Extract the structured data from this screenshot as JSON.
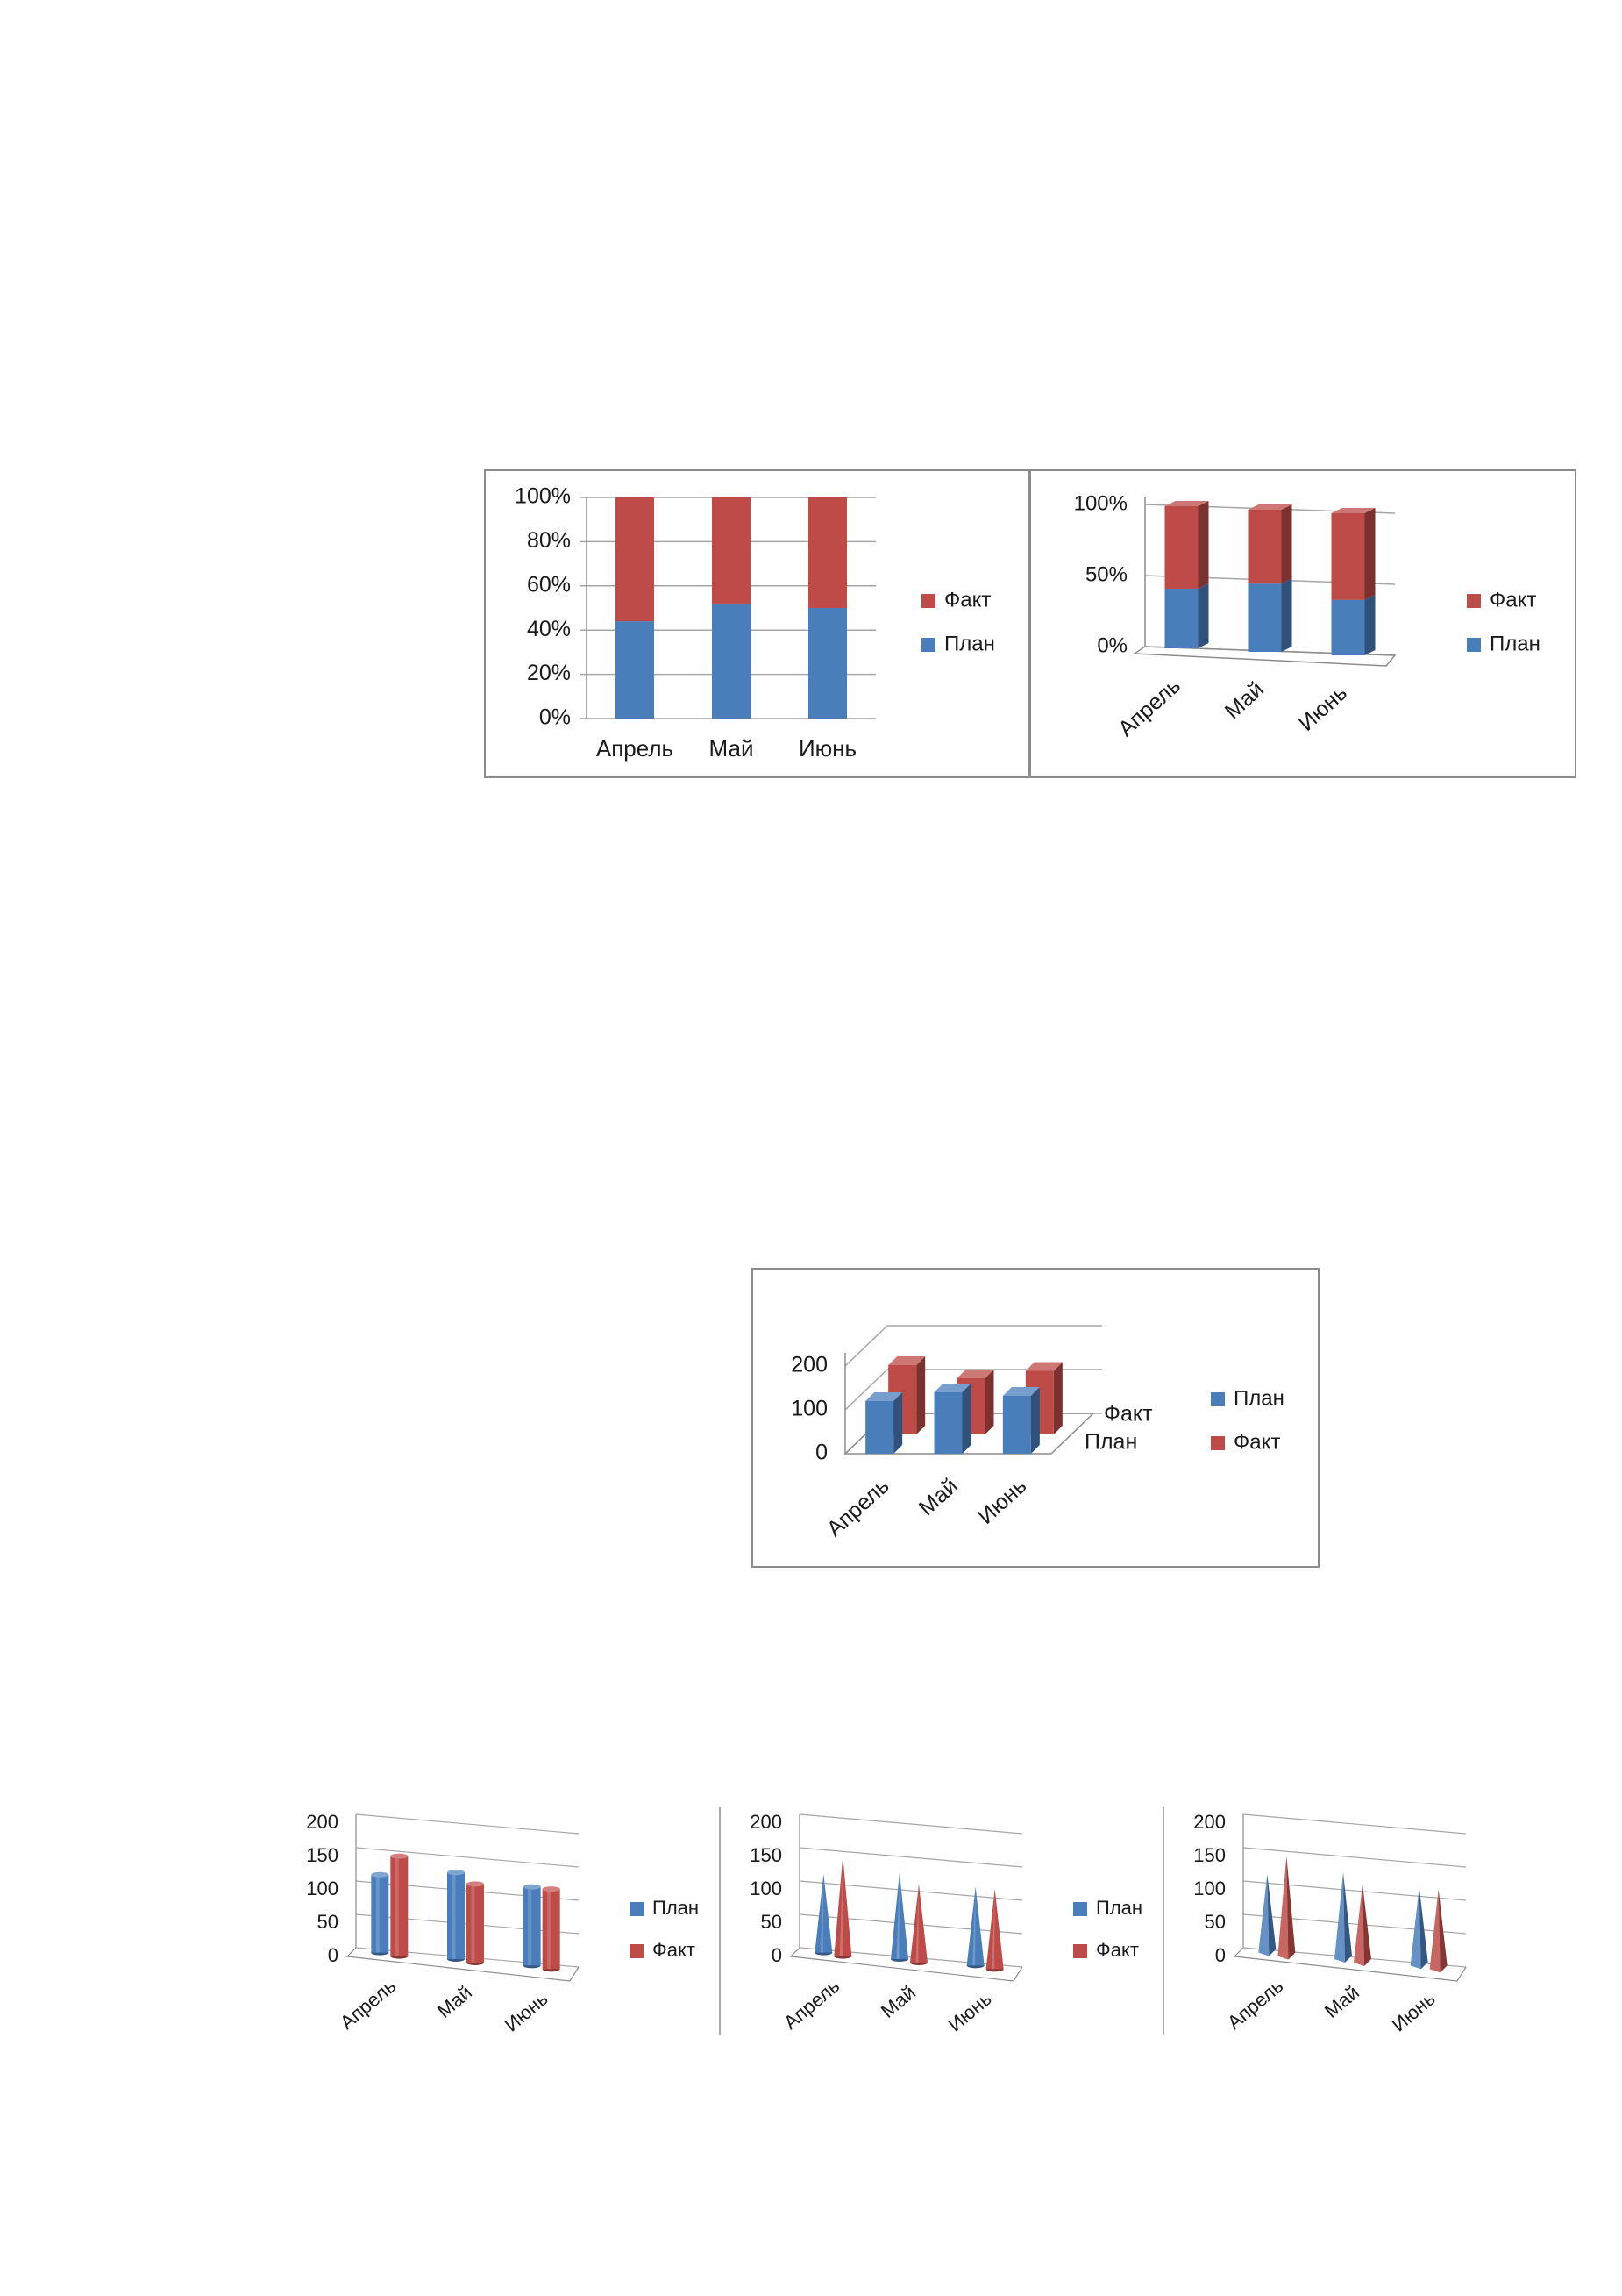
{
  "colors": {
    "plan": "#4a7ebb",
    "fact": "#be4b48",
    "grid": "#a6a6a6",
    "axis": "#8c8c8c",
    "text": "#1a1a1a"
  },
  "legend_labels": {
    "plan": "План",
    "fact": "Факт"
  },
  "chart_data": [
    {
      "type": "bar",
      "variant": "stacked-percent-2d",
      "categories": [
        "Апрель",
        "Май",
        "Июнь"
      ],
      "y_ticks": [
        "0%",
        "20%",
        "40%",
        "60%",
        "80%",
        "100%"
      ],
      "ylim": [
        0,
        100
      ],
      "grid": true,
      "legend_position": "right",
      "series": [
        {
          "name": "План",
          "color": "#4a7ebb",
          "values": [
            44,
            52,
            50
          ]
        },
        {
          "name": "Факт",
          "color": "#be4b48",
          "values": [
            56,
            48,
            50
          ]
        }
      ]
    },
    {
      "type": "bar",
      "variant": "stacked-percent-3d",
      "categories": [
        "Апрель",
        "Май",
        "Июнь"
      ],
      "y_ticks": [
        "0%",
        "50%",
        "100%"
      ],
      "ylim": [
        0,
        100
      ],
      "grid": true,
      "legend_position": "right",
      "series": [
        {
          "name": "План",
          "color": "#4a7ebb",
          "values": [
            42,
            48,
            39
          ]
        },
        {
          "name": "Факт",
          "color": "#be4b48",
          "values": [
            58,
            52,
            61
          ]
        }
      ]
    },
    {
      "type": "bar",
      "variant": "3d-columns-depth",
      "categories": [
        "Апрель",
        "Май",
        "Июнь"
      ],
      "depth_labels": [
        "Факт",
        "План"
      ],
      "y_ticks": [
        "0",
        "100",
        "200"
      ],
      "ylim": [
        0,
        200
      ],
      "grid": true,
      "legend_position": "right",
      "series": [
        {
          "name": "План",
          "color": "#4a7ebb",
          "values": [
            120,
            140,
            132
          ]
        },
        {
          "name": "Факт",
          "color": "#be4b48",
          "values": [
            158,
            128,
            145
          ]
        }
      ]
    },
    {
      "type": "bar",
      "variant": "3d-cylinders",
      "categories": [
        "Апрель",
        "Май",
        "Июнь"
      ],
      "y_ticks": [
        "0",
        "50",
        "100",
        "150",
        "200"
      ],
      "ylim": [
        0,
        200
      ],
      "grid": true,
      "legend_position": "right",
      "series": [
        {
          "name": "План",
          "color": "#4a7ebb",
          "values": [
            117,
            130,
            118
          ]
        },
        {
          "name": "Факт",
          "color": "#be4b48",
          "values": [
            150,
            118,
            120
          ]
        }
      ]
    },
    {
      "type": "bar",
      "variant": "3d-cones",
      "categories": [
        "Апрель",
        "Май",
        "Июнь"
      ],
      "y_ticks": [
        "0",
        "50",
        "100",
        "150",
        "200"
      ],
      "ylim": [
        0,
        200
      ],
      "grid": true,
      "legend_position": "right",
      "series": [
        {
          "name": "План",
          "color": "#4a7ebb",
          "values": [
            118,
            130,
            118
          ]
        },
        {
          "name": "Факт",
          "color": "#be4b48",
          "values": [
            150,
            118,
            120
          ]
        }
      ]
    },
    {
      "type": "bar",
      "variant": "3d-pyramids",
      "categories": [
        "Апрель",
        "Май",
        "Июнь"
      ],
      "y_ticks": [
        "0",
        "50",
        "100",
        "150",
        "200"
      ],
      "ylim": [
        0,
        200
      ],
      "grid": true,
      "legend_position": "none",
      "series": [
        {
          "name": "План",
          "color": "#4a7ebb",
          "values": [
            118,
            130,
            118
          ]
        },
        {
          "name": "Факт",
          "color": "#be4b48",
          "values": [
            150,
            118,
            120
          ]
        }
      ]
    }
  ]
}
